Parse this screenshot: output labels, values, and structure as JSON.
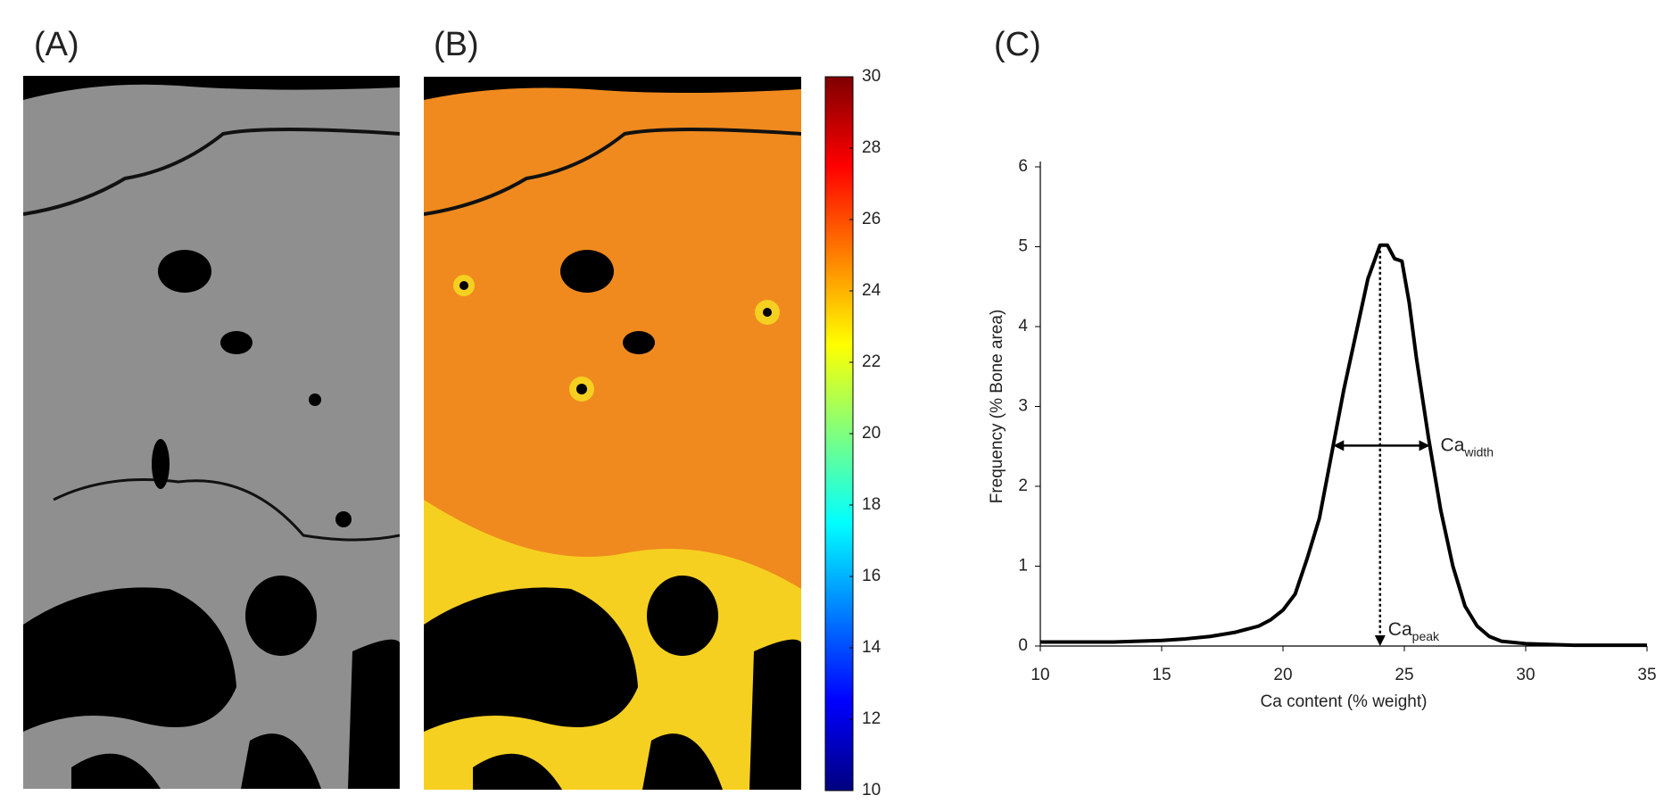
{
  "panels": [
    "(A)",
    "(B)",
    "(C)"
  ],
  "chart_data": [
    {
      "type": "colorbar",
      "colormap": "jet",
      "ylim": [
        10,
        30
      ],
      "yticks": [
        10,
        12,
        14,
        16,
        18,
        20,
        22,
        24,
        26,
        28,
        30
      ]
    },
    {
      "type": "line",
      "xlabel": "Ca content (% weight)",
      "ylabel": "Frequency (% Bone area)",
      "x": [
        10,
        11,
        12,
        13,
        14,
        15,
        16,
        17,
        18,
        19,
        19.5,
        20,
        20.5,
        21,
        21.5,
        22,
        22.5,
        23,
        23.5,
        24,
        24.3,
        24.6,
        24.9,
        25.2,
        25.5,
        26,
        26.5,
        27,
        27.5,
        28,
        28.5,
        29,
        30,
        31,
        32,
        33,
        35
      ],
      "series": [
        {
          "color": "#000000",
          "values": [
            0.05,
            0.05,
            0.05,
            0.05,
            0.06,
            0.07,
            0.09,
            0.12,
            0.17,
            0.25,
            0.33,
            0.45,
            0.65,
            1.1,
            1.6,
            2.4,
            3.2,
            3.9,
            4.6,
            5.02,
            5.02,
            4.85,
            4.82,
            4.3,
            3.6,
            2.6,
            1.7,
            1.0,
            0.5,
            0.25,
            0.12,
            0.06,
            0.03,
            0.02,
            0.01,
            0.01,
            0.01
          ]
        }
      ],
      "xlim": [
        10,
        35
      ],
      "ylim": [
        0,
        6
      ],
      "xticks": [
        10,
        15,
        20,
        25,
        30,
        35
      ],
      "yticks": [
        0,
        1,
        2,
        3,
        4,
        5,
        6
      ],
      "annotations": [
        {
          "text": "Ca",
          "sub": "width"
        },
        {
          "text": "Ca",
          "sub": "peak"
        }
      ]
    }
  ]
}
